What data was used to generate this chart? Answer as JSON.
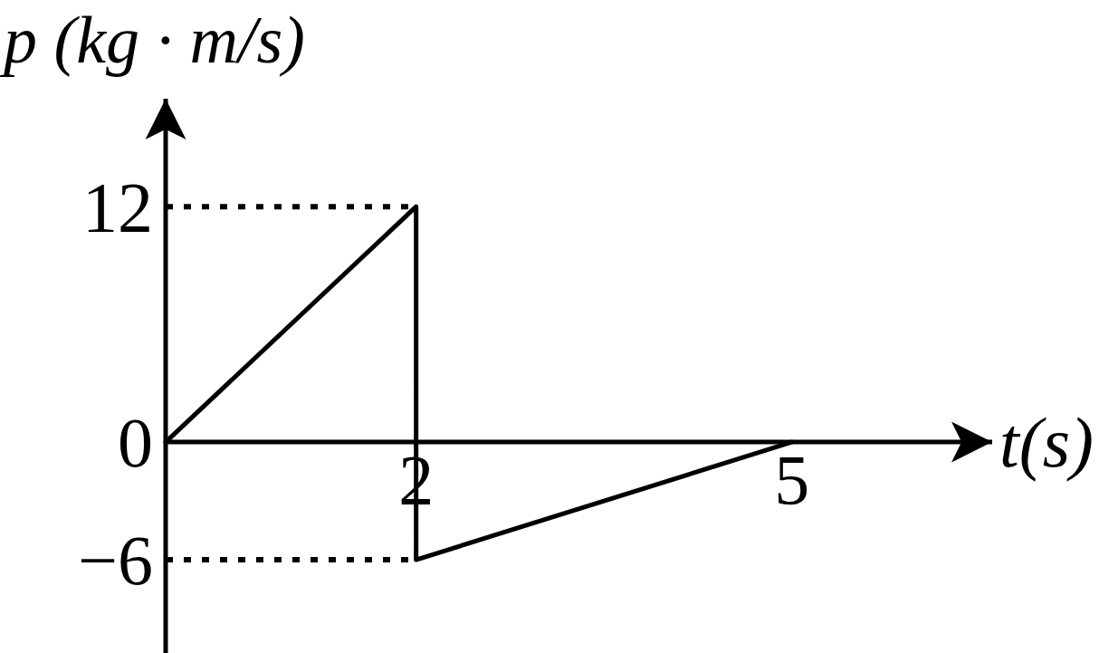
{
  "chart_data": {
    "type": "line",
    "xlabel": "t(s)",
    "ylabel": "p (kg · m/s)",
    "series": [
      {
        "color": "#000000",
        "x": [
          0,
          2,
          2,
          5
        ],
        "values": [
          0,
          12,
          -6,
          0
        ]
      },
      {
        "color": "#000000",
        "x": [
          0,
          2
        ],
        "values": [
          12,
          12
        ],
        "line_style": "dotted"
      },
      {
        "color": "#000000",
        "x": [
          0,
          2
        ],
        "values": [
          -6,
          -6
        ],
        "line_style": "dotted"
      }
    ],
    "xlim": [
      0,
      6.6
    ],
    "xticks": [
      2,
      5
    ],
    "ylim": [
      -10.75,
      17.5
    ],
    "yticks": [
      {
        "value": -6,
        "label": "−6"
      },
      0,
      12
    ]
  }
}
